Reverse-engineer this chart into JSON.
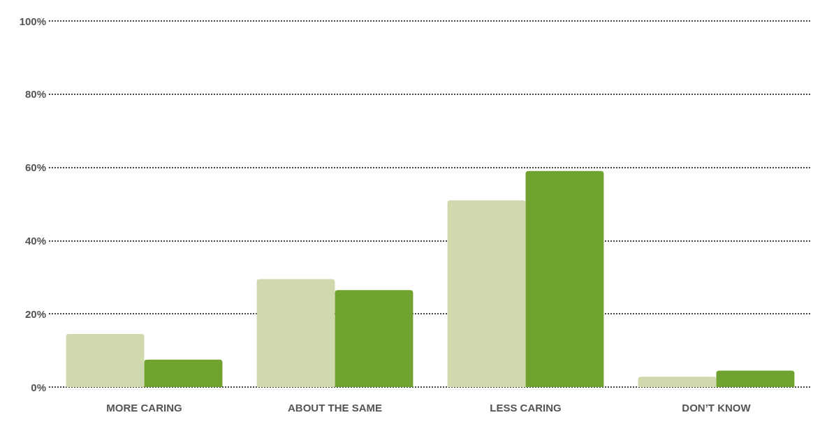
{
  "chart_data": {
    "type": "bar",
    "categories": [
      "MORE CARING",
      "ABOUT THE SAME",
      "LESS CARING",
      "DON’T KNOW"
    ],
    "series": [
      {
        "color": "#cfd9ad",
        "values": [
          14.5,
          29.5,
          51,
          2.8
        ]
      },
      {
        "color": "#70a22f",
        "values": [
          7.5,
          26.5,
          59,
          4.5
        ]
      }
    ],
    "ylim": [
      0,
      100
    ],
    "yticks": [
      {
        "value": 0,
        "label": "0%"
      },
      {
        "value": 20,
        "label": "20%"
      },
      {
        "value": 40,
        "label": "40%"
      },
      {
        "value": 60,
        "label": "60%"
      },
      {
        "value": 80,
        "label": "80%"
      },
      {
        "value": 100,
        "label": "100%"
      }
    ],
    "grid": "y",
    "line_style": "dotted"
  }
}
